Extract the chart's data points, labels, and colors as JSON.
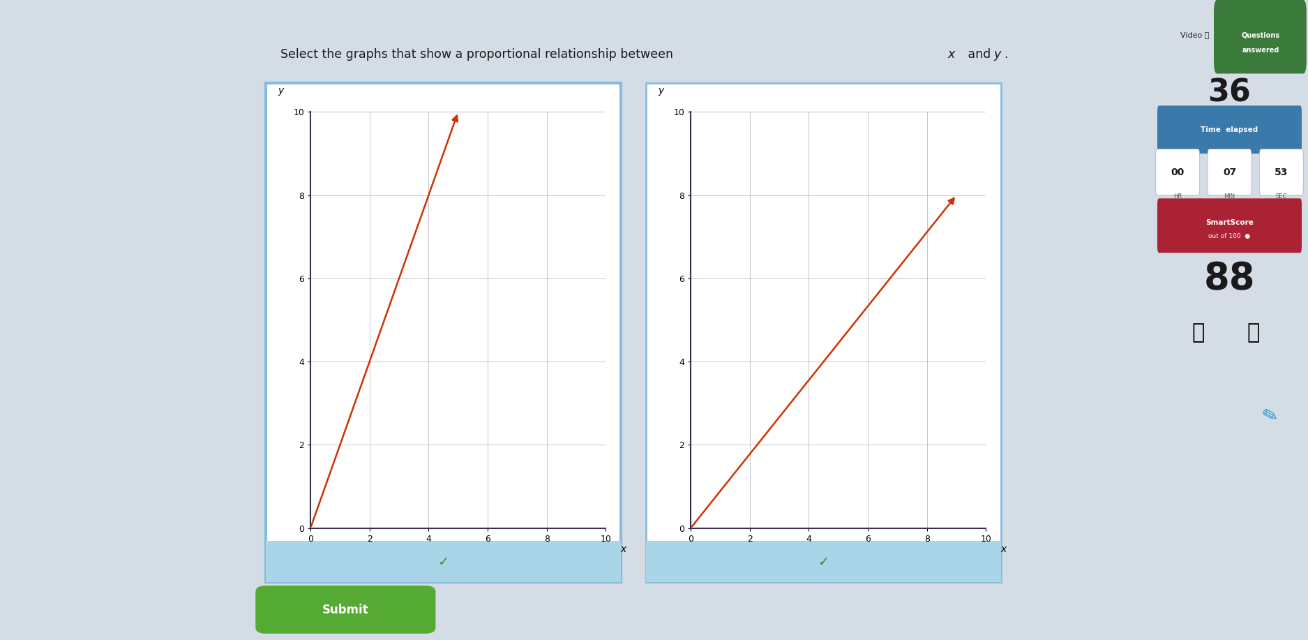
{
  "bg_color": "#c8cdd4",
  "left_bg": "#3a8fbf",
  "content_bg": "#d4dde6",
  "title": "Select the graphs that show a proportional relationship between ",
  "title_x": "x",
  "title_and": " and ",
  "title_y": "y",
  "title_dot": ".",
  "graph1": {
    "xlim": [
      0,
      10
    ],
    "ylim": [
      0,
      10
    ],
    "xticks": [
      0,
      2,
      4,
      6,
      8,
      10
    ],
    "yticks": [
      0,
      2,
      4,
      6,
      8,
      10
    ],
    "line_x": [
      0,
      5
    ],
    "line_y": [
      0,
      10
    ],
    "line_color": "#cc3300",
    "box_color": "#88bbdd",
    "bottom_color": "#aad4e8",
    "selected": true
  },
  "graph2": {
    "xlim": [
      0,
      10
    ],
    "ylim": [
      0,
      10
    ],
    "xticks": [
      0,
      2,
      4,
      6,
      8,
      10
    ],
    "yticks": [
      0,
      2,
      4,
      6,
      8,
      10
    ],
    "line_x": [
      0,
      9
    ],
    "line_y": [
      0,
      8
    ],
    "line_color": "#cc3300",
    "box_color": "#88bbdd",
    "bottom_color": "#aad4e8",
    "selected": true
  },
  "sidebar_bg": "#c8cdd4",
  "video_btn_color": "#555555",
  "questions_btn_color": "#3a7a3a",
  "questions_number": "36",
  "time_btn_color": "#3a7aaa",
  "time_value": "00",
  "time_min": "07",
  "time_sec": "53",
  "smartscore_btn_color": "#aa2233",
  "smartscore_value": "88",
  "submit_bg": "#55aa33",
  "submit_text": "Submit",
  "check_color": "#448833"
}
